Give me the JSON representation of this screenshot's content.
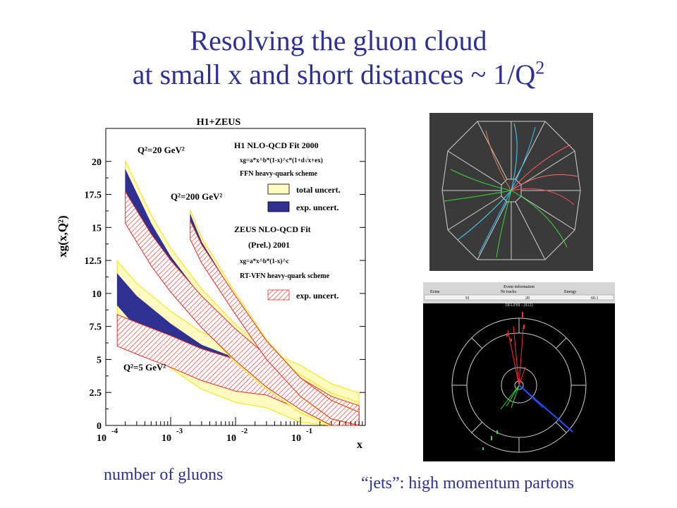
{
  "title": {
    "line1": "Resolving the gluon cloud",
    "line2_prefix": "at small x and short distances ~ 1/Q",
    "line2_sup": "2"
  },
  "chart_data": {
    "type": "line",
    "title": "H1+ZEUS",
    "xlabel": "x",
    "ylabel": "xg(x,Q²)",
    "x_scale": "log",
    "xlim": [
      0.0001,
      1
    ],
    "ylim": [
      0,
      22.5
    ],
    "x_ticks": [
      {
        "base": "10",
        "exp": "-4"
      },
      {
        "base": "10",
        "exp": "-3"
      },
      {
        "base": "10",
        "exp": "-2"
      },
      {
        "base": "10",
        "exp": "-1"
      }
    ],
    "y_ticks": [
      "0",
      "2.5",
      "5",
      "7.5",
      "10",
      "12.5",
      "15",
      "17.5",
      "20"
    ],
    "curve_labels": [
      {
        "text": "Q²=20 GeV²"
      },
      {
        "text": "Q²=200 GeV²"
      },
      {
        "text": "Q²=5 GeV²"
      }
    ],
    "legend": {
      "h1_title": "H1 NLO-QCD Fit 2000",
      "h1_formula": "xg=a*x^b*(1-x)^c*(1+d√x+ex)",
      "h1_scheme": "FFN heavy-quark scheme",
      "items": [
        {
          "label": "total uncert.",
          "style": "yellow-fill"
        },
        {
          "label": "exp.  uncert.",
          "style": "blue-fill"
        }
      ],
      "zeus_title": "ZEUS NLO-QCD Fit",
      "zeus_subtitle": "(Prel.) 2001",
      "zeus_formula": "xg=a*x^b*(1-x)^c",
      "zeus_scheme": "RT-VFN heavy-quark scheme",
      "zeus_item": {
        "label": "exp.  uncert.",
        "style": "red-hatch"
      }
    },
    "series": [
      {
        "group": "Q²=5 GeV²",
        "fit": "H1",
        "x": [
          0.00015,
          0.0003,
          0.001,
          0.003,
          0.01,
          0.03,
          0.1,
          0.3,
          0.8
        ],
        "y": [
          10.3,
          8.6,
          6.5,
          4.9,
          3.9,
          3.5,
          2.4,
          1.0,
          0.3
        ],
        "band": 1.2
      },
      {
        "group": "Q²=5 GeV²",
        "fit": "ZEUS",
        "x": [
          0.00015,
          0.0003,
          0.001,
          0.003,
          0.01,
          0.03,
          0.1,
          0.3,
          0.8
        ],
        "y": [
          7.2,
          6.6,
          5.6,
          4.6,
          3.8,
          3.5,
          2.4,
          1.0,
          0.3
        ],
        "band": 1.2
      },
      {
        "group": "Q²=20 GeV²",
        "fit": "H1",
        "x": [
          0.0002,
          0.0005,
          0.001,
          0.003,
          0.01,
          0.03,
          0.1,
          0.3,
          0.8
        ],
        "y": [
          18.6,
          14.5,
          12.0,
          8.9,
          6.2,
          4.2,
          2.4,
          1.0,
          0.3
        ],
        "band": 0.8
      },
      {
        "group": "Q²=20 GeV²",
        "fit": "ZEUS",
        "x": [
          0.0002,
          0.0005,
          0.001,
          0.003,
          0.01,
          0.03,
          0.1,
          0.3,
          0.8
        ],
        "y": [
          16.5,
          13.3,
          11.3,
          8.6,
          6.1,
          4.1,
          2.4,
          1.0,
          0.3
        ],
        "band": 1.2
      },
      {
        "group": "Q²=200 GeV²",
        "fit": "H1",
        "x": [
          0.002,
          0.003,
          0.01,
          0.03,
          0.1,
          0.3,
          0.8
        ],
        "y": [
          15.6,
          13.5,
          9.3,
          5.8,
          2.9,
          1.2,
          0.3
        ],
        "band": 0.4
      },
      {
        "group": "Q²=200 GeV²",
        "fit": "ZEUS",
        "x": [
          0.002,
          0.003,
          0.01,
          0.03,
          0.1,
          0.3,
          0.8
        ],
        "y": [
          14.8,
          13.0,
          9.1,
          5.7,
          2.9,
          1.2,
          0.3
        ],
        "band": 0.7
      }
    ]
  },
  "event_display_bottom": {
    "header": "Event information",
    "columns": [
      "Ecms",
      "Nr tracks",
      "Energy"
    ],
    "values": [
      "91",
      "20",
      "60.1"
    ],
    "subheader": "DELPHI - (812)"
  },
  "captions": {
    "left": "number  of gluons",
    "right": "“jets”: high momentum partons"
  }
}
